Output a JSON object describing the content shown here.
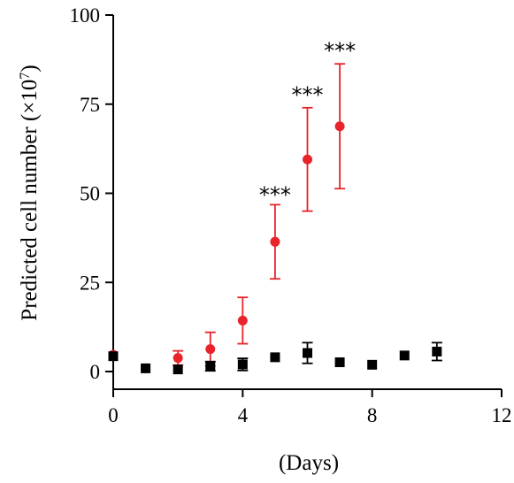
{
  "chart_data": {
    "type": "scatter",
    "xlabel": "(Days)",
    "ylabel": "Predicted cell number (×10",
    "ylabel_exponent": "7",
    "ylabel_suffix": ")",
    "xlim": [
      0,
      12
    ],
    "ylim": [
      0,
      100
    ],
    "x_ticks": [
      "0",
      "4",
      "8",
      "12"
    ],
    "y_ticks": [
      "0",
      "25",
      "50",
      "75",
      "100"
    ],
    "grid": false,
    "series": [
      {
        "color": "#e8232a",
        "marker": "circle",
        "x": [
          0,
          1,
          2,
          3,
          4,
          5,
          6,
          7
        ],
        "y": [
          4.7,
          0.9,
          3.8,
          6.3,
          14.3,
          36.4,
          59.5,
          68.8
        ],
        "err": [
          0.3,
          0.3,
          2.0,
          4.7,
          6.5,
          10.4,
          14.5,
          17.5
        ]
      },
      {
        "color": "#000000",
        "marker": "square",
        "x": [
          0,
          1,
          2,
          3,
          4,
          5,
          6,
          7,
          8,
          9,
          10
        ],
        "y": [
          4.3,
          0.9,
          0.6,
          1.5,
          2.0,
          4.0,
          5.2,
          2.6,
          1.9,
          4.5,
          5.6
        ],
        "err": [
          0.3,
          0.3,
          0.3,
          1.3,
          1.7,
          0.3,
          2.9,
          0.3,
          0.3,
          0.5,
          2.5
        ]
      }
    ],
    "annotations": [
      {
        "text": "***",
        "x": 5,
        "y": 47.5
      },
      {
        "text": "***",
        "x": 6,
        "y": 75.5
      },
      {
        "text": "***",
        "x": 7,
        "y": 88.0
      }
    ]
  }
}
